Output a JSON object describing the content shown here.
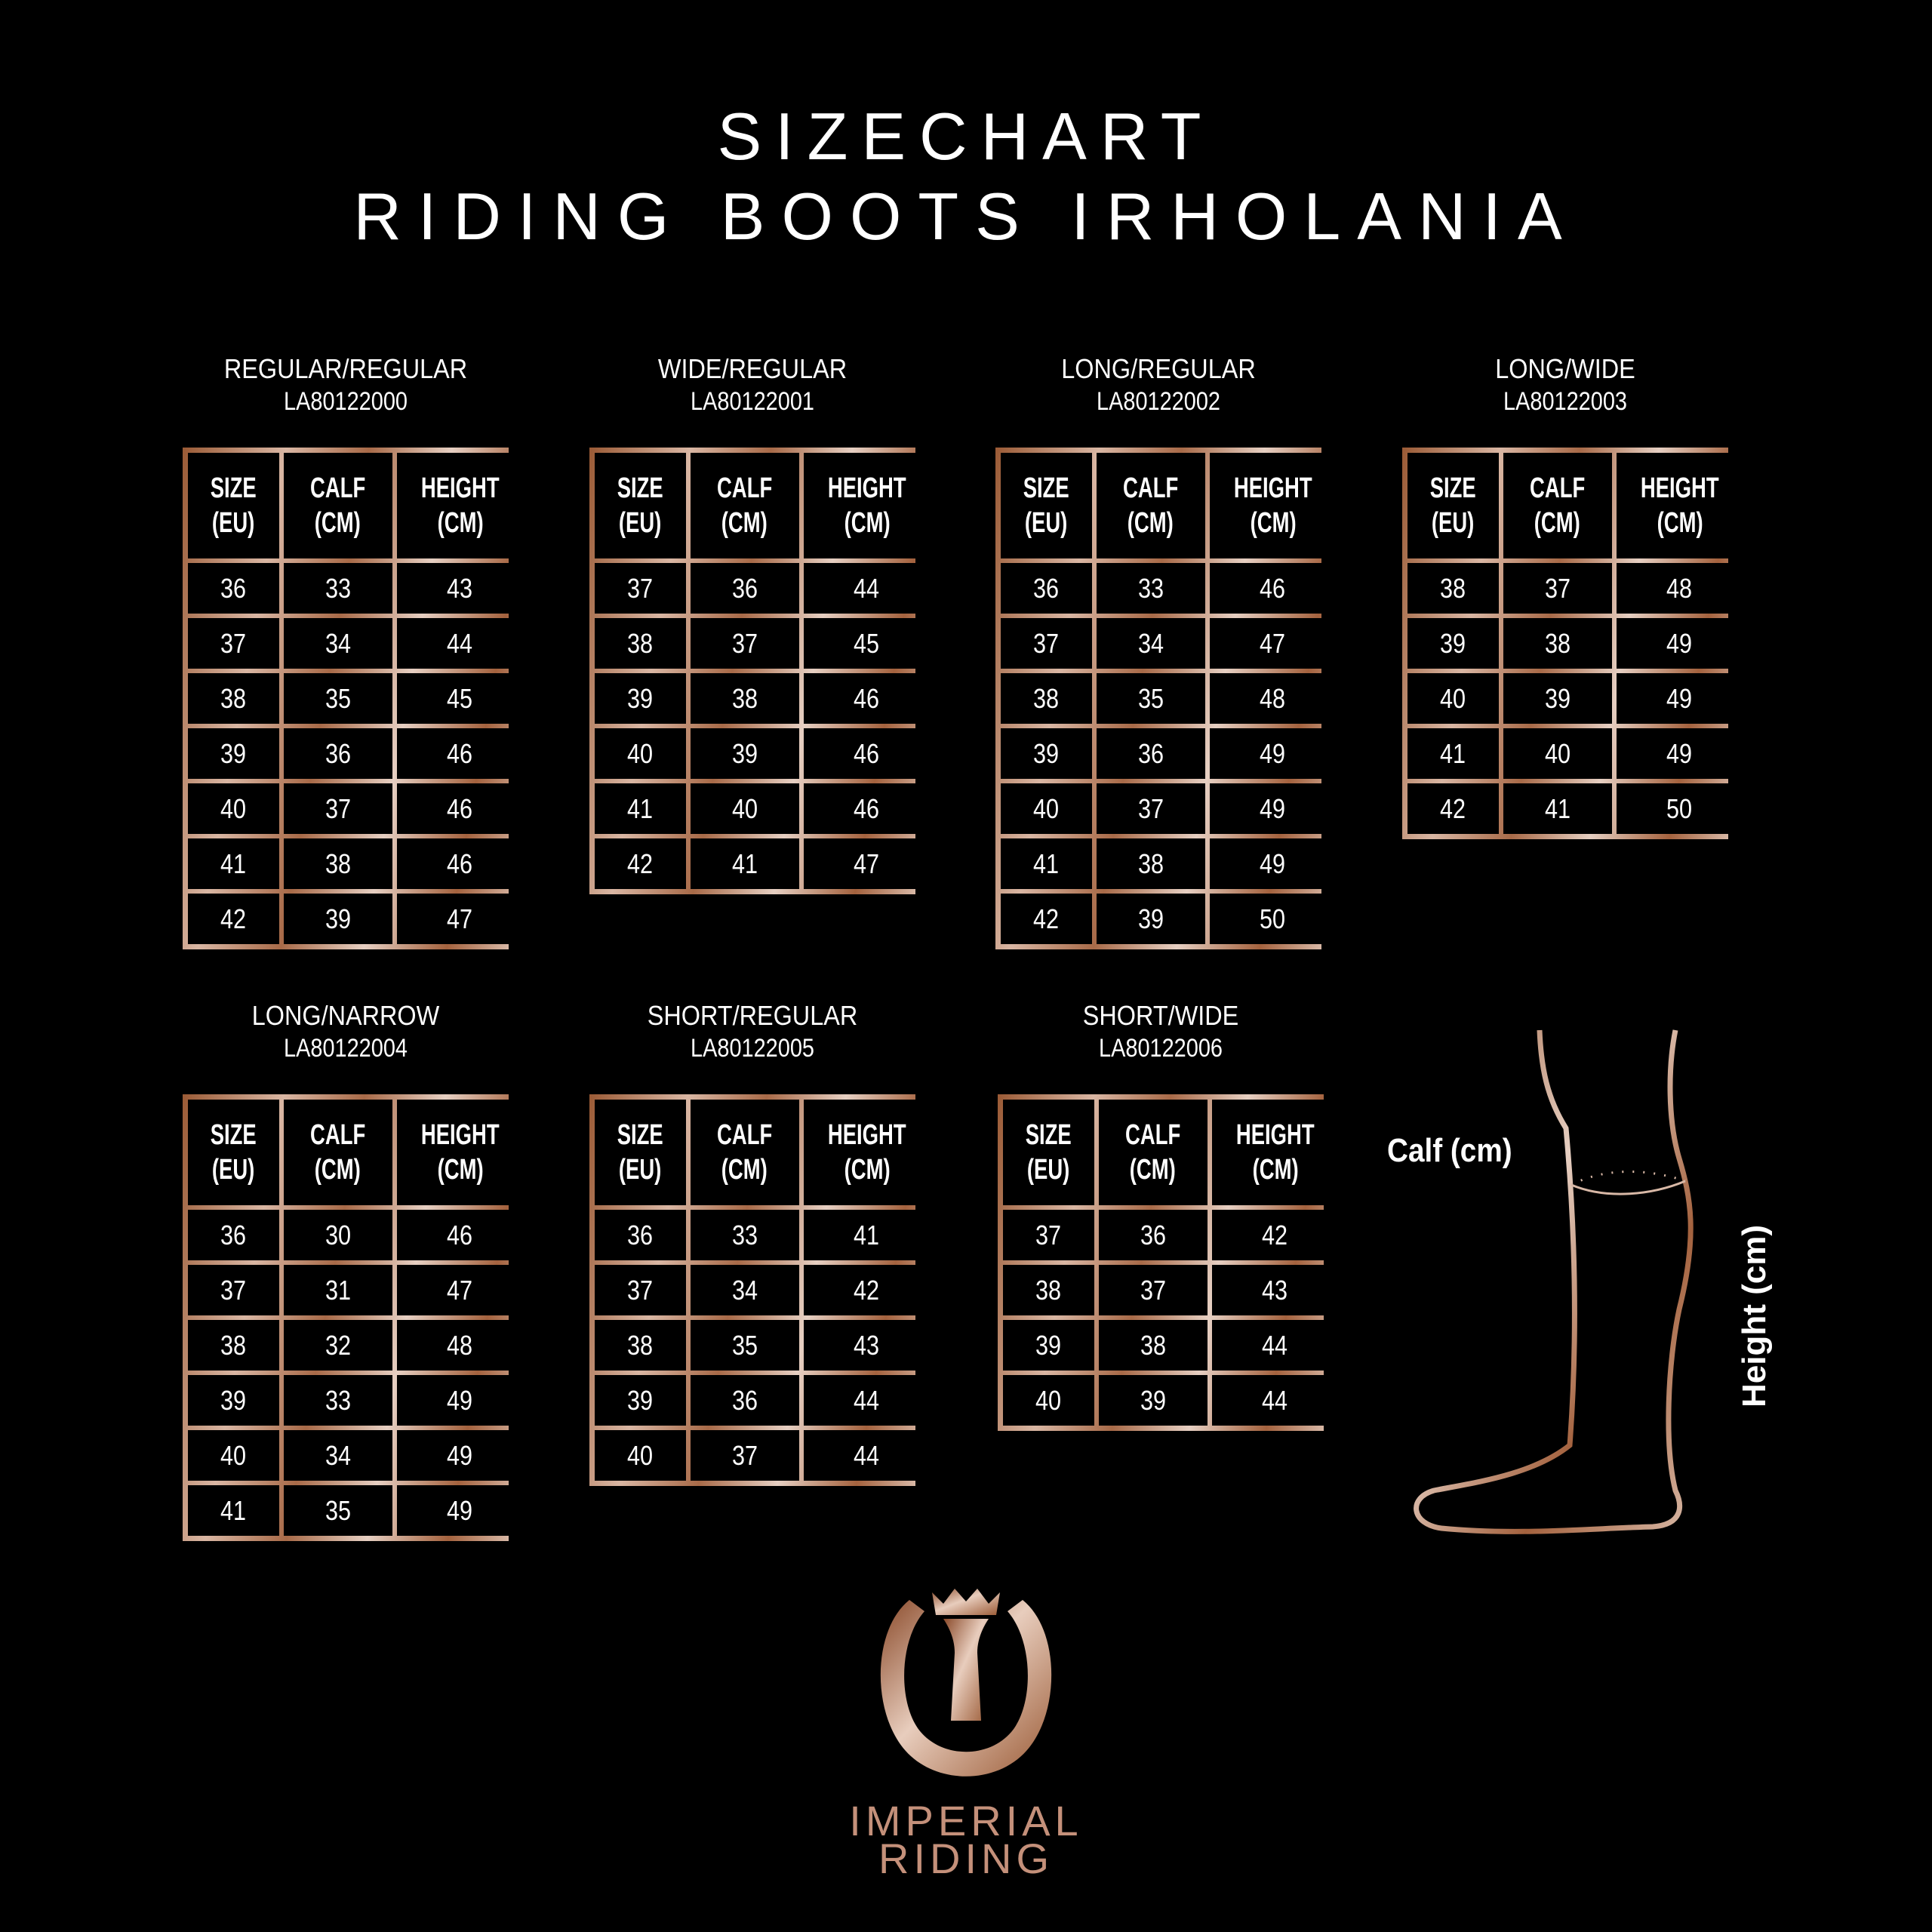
{
  "header": {
    "title": "SIZECHART",
    "subtitle": "RIDING BOOTS IRHOLANIA"
  },
  "columns": [
    "SIZE (EU)",
    "CALF (CM)",
    "HEIGHT (CM)"
  ],
  "column_lines": [
    [
      "SIZE",
      "(EU)"
    ],
    [
      "CALF",
      "(CM)"
    ],
    [
      "HEIGHT",
      "(CM)"
    ]
  ],
  "groups": [
    {
      "name": "REGULAR/REGULAR",
      "code": "LA80122000",
      "rows": [
        [
          "36",
          "33",
          "43"
        ],
        [
          "37",
          "34",
          "44"
        ],
        [
          "38",
          "35",
          "45"
        ],
        [
          "39",
          "36",
          "46"
        ],
        [
          "40",
          "37",
          "46"
        ],
        [
          "41",
          "38",
          "46"
        ],
        [
          "42",
          "39",
          "47"
        ]
      ]
    },
    {
      "name": "WIDE/REGULAR",
      "code": "LA80122001",
      "rows": [
        [
          "37",
          "36",
          "44"
        ],
        [
          "38",
          "37",
          "45"
        ],
        [
          "39",
          "38",
          "46"
        ],
        [
          "40",
          "39",
          "46"
        ],
        [
          "41",
          "40",
          "46"
        ],
        [
          "42",
          "41",
          "47"
        ]
      ]
    },
    {
      "name": "LONG/REGULAR",
      "code": "LA80122002",
      "rows": [
        [
          "36",
          "33",
          "46"
        ],
        [
          "37",
          "34",
          "47"
        ],
        [
          "38",
          "35",
          "48"
        ],
        [
          "39",
          "36",
          "49"
        ],
        [
          "40",
          "37",
          "49"
        ],
        [
          "41",
          "38",
          "49"
        ],
        [
          "42",
          "39",
          "50"
        ]
      ]
    },
    {
      "name": "LONG/WIDE",
      "code": "LA80122003",
      "rows": [
        [
          "38",
          "37",
          "48"
        ],
        [
          "39",
          "38",
          "49"
        ],
        [
          "40",
          "39",
          "49"
        ],
        [
          "41",
          "40",
          "49"
        ],
        [
          "42",
          "41",
          "50"
        ]
      ]
    },
    {
      "name": "LONG/NARROW",
      "code": "LA80122004",
      "rows": [
        [
          "36",
          "30",
          "46"
        ],
        [
          "37",
          "31",
          "47"
        ],
        [
          "38",
          "32",
          "48"
        ],
        [
          "39",
          "33",
          "49"
        ],
        [
          "40",
          "34",
          "49"
        ],
        [
          "41",
          "35",
          "49"
        ]
      ]
    },
    {
      "name": "SHORT/REGULAR",
      "code": "LA80122005",
      "rows": [
        [
          "36",
          "33",
          "41"
        ],
        [
          "37",
          "34",
          "42"
        ],
        [
          "38",
          "35",
          "43"
        ],
        [
          "39",
          "36",
          "44"
        ],
        [
          "40",
          "37",
          "44"
        ]
      ]
    },
    {
      "name": "SHORT/WIDE",
      "code": "LA80122006",
      "rows": [
        [
          "37",
          "36",
          "42"
        ],
        [
          "38",
          "37",
          "43"
        ],
        [
          "39",
          "38",
          "44"
        ],
        [
          "40",
          "39",
          "44"
        ]
      ]
    }
  ],
  "diagram": {
    "calf_label": "Calf (cm)",
    "height_label": "Height (cm)"
  },
  "logo": {
    "line1": "IMPERIAL",
    "line2": "RIDING"
  },
  "colors": {
    "background": "#000000",
    "copper_dark": "#9a5a35",
    "copper_light": "#e6cfc2",
    "text": "#ffffff"
  }
}
